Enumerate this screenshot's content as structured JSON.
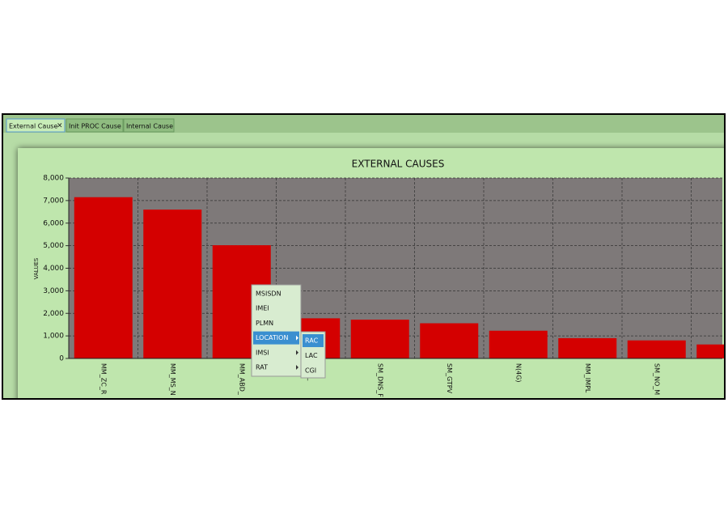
{
  "tabs": [
    "External Cause",
    "Init PROC Cause",
    "Internal Cause"
  ],
  "chart_data": {
    "type": "bar",
    "title": "EXTERNAL CAUSES",
    "y_label": "VALUES",
    "categories": [
      "MM_ZC_R",
      "MM_MS_N",
      "MM_ABD_",
      "DNS_",
      "SM_DNS_F",
      "SM_GTPV",
      "N(4G)",
      "MM_IMPL",
      "SM_NO_M",
      null
    ],
    "values": [
      7150,
      6600,
      5020,
      1780,
      1720,
      1560,
      1230,
      900,
      800,
      620
    ],
    "color": "#d40000",
    "ylim": [
      0,
      8000
    ],
    "yticks": [
      {
        "value": 0,
        "label": "0"
      },
      {
        "value": 1000,
        "label": "1,000"
      },
      {
        "value": 2000,
        "label": "2,000"
      },
      {
        "value": 3000,
        "label": "3,000"
      },
      {
        "value": 4000,
        "label": "4,000"
      },
      {
        "value": 5000,
        "label": "5,000"
      },
      {
        "value": 6000,
        "label": "6,000"
      },
      {
        "value": 7000,
        "label": "7,000"
      },
      {
        "value": 8000,
        "label": "8,000"
      }
    ],
    "grid": true
  },
  "context_menu": {
    "items": [
      "MSISDN",
      "IMEI",
      "PLMN",
      "LOCATION",
      "IMSI",
      "RAT"
    ],
    "submenu": [
      "RAC",
      "LAC",
      "CGI"
    ]
  }
}
